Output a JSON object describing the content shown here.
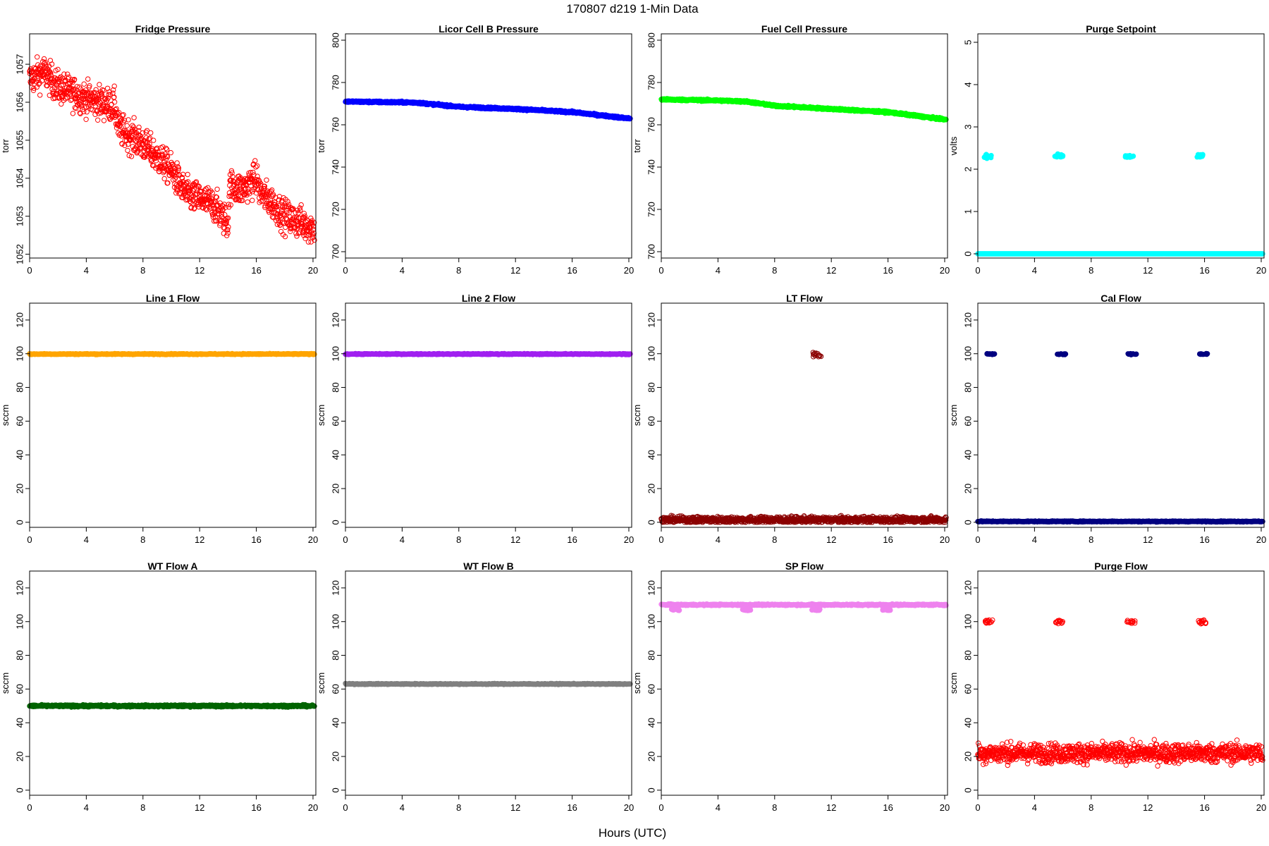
{
  "figure": {
    "title": "170807   d219   1-Min Data",
    "xlabel": "Hours (UTC)"
  },
  "chart_data": [
    {
      "type": "scatter",
      "title": "Fridge Pressure",
      "ylabel": "torr",
      "color": "#ff0000",
      "marker": "open-circle",
      "xlim": [
        0,
        20.2
      ],
      "ylim": [
        1051.9,
        1057.8
      ],
      "xticks": [
        0,
        4,
        8,
        12,
        16,
        20
      ],
      "yticks": [
        1052,
        1053,
        1054,
        1055,
        1056,
        1057
      ],
      "trend": [
        [
          0,
          1056.6
        ],
        [
          1,
          1056.8
        ],
        [
          2,
          1056.4
        ],
        [
          4,
          1056.1
        ],
        [
          6,
          1055.9
        ],
        [
          6.3,
          1055.3
        ],
        [
          8,
          1054.9
        ],
        [
          10,
          1054.2
        ],
        [
          11,
          1053.6
        ],
        [
          13,
          1053.3
        ],
        [
          14,
          1052.8
        ],
        [
          14.1,
          1053.8
        ],
        [
          15,
          1053.7
        ],
        [
          16,
          1054.0
        ],
        [
          16.3,
          1053.6
        ],
        [
          17,
          1053.4
        ],
        [
          18,
          1053.0
        ],
        [
          20,
          1052.7
        ]
      ],
      "noise": 0.3,
      "n": 1100,
      "x_range": [
        0,
        20.1
      ]
    },
    {
      "type": "scatter",
      "title": "Licor Cell B Pressure",
      "ylabel": "torr",
      "color": "#0000ff",
      "marker": "filled",
      "xlim": [
        0,
        20.2
      ],
      "ylim": [
        697,
        803
      ],
      "xticks": [
        0,
        4,
        8,
        12,
        16,
        20
      ],
      "yticks": [
        700,
        720,
        740,
        760,
        780,
        800
      ],
      "trend": [
        [
          0,
          771
        ],
        [
          5,
          770.5
        ],
        [
          8,
          768.5
        ],
        [
          12,
          767.5
        ],
        [
          16,
          766
        ],
        [
          20,
          763
        ]
      ],
      "noise": 0.3,
      "n": 1100,
      "x_range": [
        0,
        20.1
      ]
    },
    {
      "type": "scatter",
      "title": "Fuel Cell Pressure",
      "ylabel": "torr",
      "color": "#00ff00",
      "marker": "filled",
      "xlim": [
        0,
        20.2
      ],
      "ylim": [
        697,
        803
      ],
      "xticks": [
        0,
        4,
        8,
        12,
        16,
        20
      ],
      "yticks": [
        700,
        720,
        740,
        760,
        780,
        800
      ],
      "trend": [
        [
          0,
          772
        ],
        [
          4,
          771.5
        ],
        [
          6,
          771
        ],
        [
          8,
          769
        ],
        [
          12,
          767.5
        ],
        [
          16,
          766
        ],
        [
          20,
          762.5
        ]
      ],
      "noise": 0.3,
      "n": 1100,
      "x_range": [
        0,
        20.1
      ]
    },
    {
      "type": "scatter",
      "title": "Purge Setpoint",
      "ylabel": "volts",
      "color": "#00ffff",
      "marker": "filled",
      "xlim": [
        0,
        20.2
      ],
      "ylim": [
        -0.1,
        5.2
      ],
      "xticks": [
        0,
        4,
        8,
        12,
        16,
        20
      ],
      "yticks": [
        0,
        1,
        2,
        3,
        4,
        5
      ],
      "trend": [
        [
          0,
          0
        ],
        [
          20.1,
          0
        ]
      ],
      "noise": 0,
      "n": 600,
      "x_range": [
        0,
        20.1
      ],
      "clusters": [
        [
          0.7,
          2.3
        ],
        [
          5.7,
          2.32
        ],
        [
          10.7,
          2.3
        ],
        [
          15.7,
          2.32
        ]
      ],
      "cluster_noise": 0.03
    },
    {
      "type": "scatter",
      "title": "Line 1 Flow",
      "ylabel": "sccm",
      "color": "#ffa500",
      "marker": "filled",
      "xlim": [
        0,
        20.2
      ],
      "ylim": [
        -3,
        130
      ],
      "xticks": [
        0,
        4,
        8,
        12,
        16,
        20
      ],
      "yticks": [
        0,
        20,
        40,
        60,
        80,
        100,
        120
      ],
      "trend": [
        [
          0,
          99.8
        ],
        [
          20.1,
          99.8
        ]
      ],
      "noise": 0.2,
      "n": 600,
      "x_range": [
        0,
        20.1
      ]
    },
    {
      "type": "scatter",
      "title": "Line 2 Flow",
      "ylabel": "sccm",
      "color": "#a020f0",
      "marker": "filled",
      "xlim": [
        0,
        20.2
      ],
      "ylim": [
        -3,
        130
      ],
      "xticks": [
        0,
        4,
        8,
        12,
        16,
        20
      ],
      "yticks": [
        0,
        20,
        40,
        60,
        80,
        100,
        120
      ],
      "trend": [
        [
          0,
          99.8
        ],
        [
          20.1,
          99.8
        ]
      ],
      "noise": 0.2,
      "n": 600,
      "x_range": [
        0,
        20.1
      ]
    },
    {
      "type": "scatter",
      "title": "LT Flow",
      "ylabel": "sccm",
      "color": "#8b0000",
      "marker": "open-circle",
      "xlim": [
        0,
        20.2
      ],
      "ylim": [
        -3,
        130
      ],
      "xticks": [
        0,
        4,
        8,
        12,
        16,
        20
      ],
      "yticks": [
        0,
        20,
        40,
        60,
        80,
        100,
        120
      ],
      "trend": [
        [
          0,
          1.5
        ],
        [
          20.1,
          1.5
        ]
      ],
      "noise": 1.3,
      "n": 1100,
      "x_range": [
        0,
        20.1
      ],
      "clusters": [
        [
          11.0,
          99.5
        ]
      ],
      "cluster_noise": 1.2
    },
    {
      "type": "scatter",
      "title": "Cal Flow",
      "ylabel": "sccm",
      "color": "#000080",
      "marker": "filled",
      "xlim": [
        0,
        20.2
      ],
      "ylim": [
        -3,
        130
      ],
      "xticks": [
        0,
        4,
        8,
        12,
        16,
        20
      ],
      "yticks": [
        0,
        20,
        40,
        60,
        80,
        100,
        120
      ],
      "trend": [
        [
          0,
          0.5
        ],
        [
          20.1,
          0.5
        ]
      ],
      "noise": 0.2,
      "n": 700,
      "x_range": [
        0,
        20.1
      ],
      "clusters": [
        [
          0.9,
          99.8
        ],
        [
          5.9,
          99.8
        ],
        [
          10.9,
          99.8
        ],
        [
          15.9,
          99.8
        ]
      ],
      "cluster_noise": 0.2
    },
    {
      "type": "scatter",
      "title": "WT Flow A",
      "ylabel": "sccm",
      "color": "#006400",
      "marker": "filled",
      "xlim": [
        0,
        20.2
      ],
      "ylim": [
        -3,
        130
      ],
      "xticks": [
        0,
        4,
        8,
        12,
        16,
        20
      ],
      "yticks": [
        0,
        20,
        40,
        60,
        80,
        100,
        120
      ],
      "trend": [
        [
          0,
          50
        ],
        [
          20.1,
          50
        ]
      ],
      "noise": 0.4,
      "n": 800,
      "x_range": [
        0,
        20.1
      ]
    },
    {
      "type": "scatter",
      "title": "WT Flow B",
      "ylabel": "sccm",
      "color": "#808080",
      "marker": "filled",
      "xlim": [
        0,
        20.2
      ],
      "ylim": [
        -3,
        130
      ],
      "xticks": [
        0,
        4,
        8,
        12,
        16,
        20
      ],
      "yticks": [
        0,
        20,
        40,
        60,
        80,
        100,
        120
      ],
      "trend": [
        [
          0,
          63
        ],
        [
          20.1,
          63
        ]
      ],
      "noise": 0.2,
      "n": 600,
      "x_range": [
        0,
        20.1
      ]
    },
    {
      "type": "scatter",
      "title": "SP Flow",
      "ylabel": "sccm",
      "color": "#ee82ee",
      "marker": "filled",
      "xlim": [
        0,
        20.2
      ],
      "ylim": [
        -3,
        130
      ],
      "xticks": [
        0,
        4,
        8,
        12,
        16,
        20
      ],
      "yticks": [
        0,
        20,
        40,
        60,
        80,
        100,
        120
      ],
      "trend": [
        [
          0,
          110
        ],
        [
          20.1,
          110
        ]
      ],
      "noise": 0.3,
      "n": 700,
      "x_range": [
        0,
        20.1
      ],
      "clusters": [
        [
          1.0,
          107
        ],
        [
          6.0,
          107
        ],
        [
          10.9,
          107
        ],
        [
          15.9,
          107
        ]
      ],
      "cluster_noise": 0.3
    },
    {
      "type": "scatter",
      "title": "Purge Flow",
      "ylabel": "sccm",
      "color": "#ff0000",
      "marker": "open-circle",
      "xlim": [
        0,
        20.2
      ],
      "ylim": [
        -3,
        130
      ],
      "xticks": [
        0,
        4,
        8,
        12,
        16,
        20
      ],
      "yticks": [
        0,
        20,
        40,
        60,
        80,
        100,
        120
      ],
      "trend": [
        [
          0,
          22
        ],
        [
          20.1,
          22
        ]
      ],
      "noise": 4.0,
      "n": 1100,
      "x_range": [
        0,
        20.1
      ],
      "clusters": [
        [
          0.8,
          100
        ],
        [
          5.8,
          100
        ],
        [
          10.8,
          100
        ],
        [
          15.8,
          100
        ]
      ],
      "cluster_noise": 0.8
    }
  ]
}
